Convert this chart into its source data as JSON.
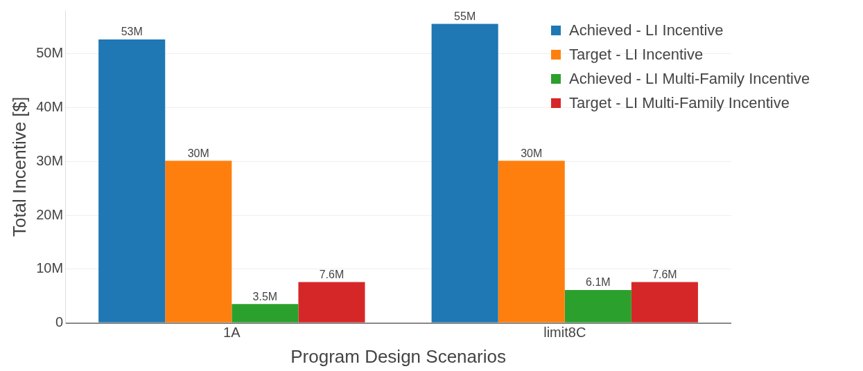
{
  "chart_data": {
    "type": "bar",
    "xlabel": "Program Design Scenarios",
    "ylabel": "Total Incentive [$]",
    "categories": [
      "1A",
      "limit8C"
    ],
    "series": [
      {
        "name": "Achieved - LI Incentive",
        "color": "#1f77b4",
        "values": [
          52600000,
          55500000
        ],
        "value_labels": [
          "53M",
          "55M"
        ]
      },
      {
        "name": "Target - LI Incentive",
        "color": "#ff7f0e",
        "values": [
          30100000,
          30100000
        ],
        "value_labels": [
          "30M",
          "30M"
        ]
      },
      {
        "name": "Achieved - LI Multi-Family Incentive",
        "color": "#2ca02c",
        "values": [
          3550000,
          6150000
        ],
        "value_labels": [
          "3.5M",
          "6.1M"
        ]
      },
      {
        "name": "Target - LI Multi-Family Incentive",
        "color": "#d62728",
        "values": [
          7600000,
          7600000
        ],
        "value_labels": [
          "7.6M",
          "7.6M"
        ]
      }
    ],
    "ylim": [
      0,
      58000000
    ],
    "yticks": [
      {
        "value": 0,
        "label": "0"
      },
      {
        "value": 10000000,
        "label": "10M"
      },
      {
        "value": 20000000,
        "label": "20M"
      },
      {
        "value": 30000000,
        "label": "30M"
      },
      {
        "value": 40000000,
        "label": "40M"
      },
      {
        "value": 50000000,
        "label": "50M"
      }
    ],
    "grid": "y",
    "legend": "top right"
  }
}
